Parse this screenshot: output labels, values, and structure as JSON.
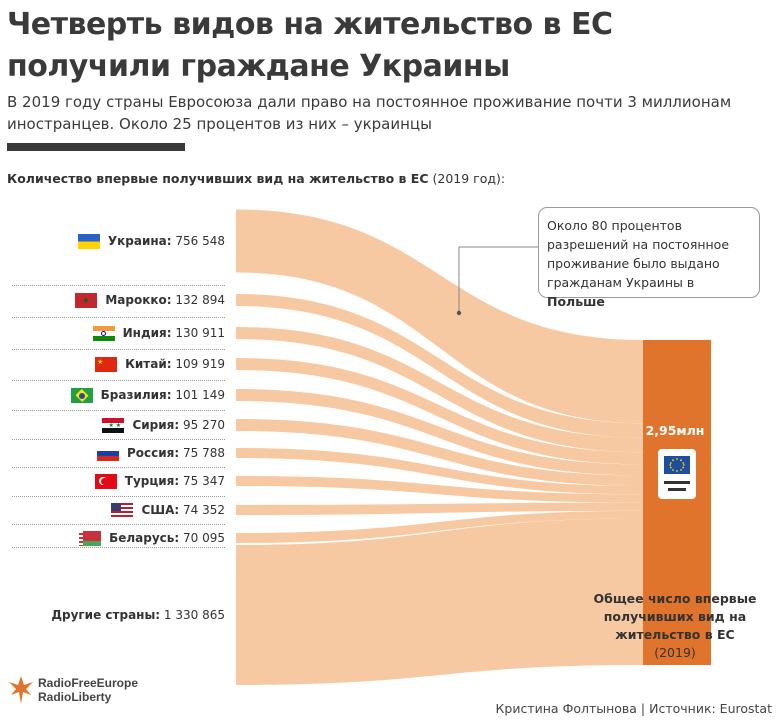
{
  "title": "Четверть видов на жительство в ЕС получили граждане Украины",
  "subtitle": "В 2019 году страны Евросоюза дали право на постоянное проживание почти 3 миллионам иностранцев. Около 25 процентов из них – украинцы",
  "heading": {
    "bold": "Количество впервые получивших вид на жительство в ЕС",
    "normal": " (2019 год):"
  },
  "callout": {
    "text": "Около 80 процентов разрешений на постоянное проживание было выдано гражданам Украины в ",
    "bold": "Польше"
  },
  "total": {
    "value": "2,95млн",
    "label_bold": "Общее число впервые получивших вид на жительство в ЕС",
    "label_normal": "(2019)"
  },
  "brand": {
    "line1": "RadioFreeEurope",
    "line2": "RadioLiberty"
  },
  "credits": "Кристина Фолтынова | Источник: Eurostat",
  "colors": {
    "flow": "#f7c9a2",
    "total_bar": "#e0742d",
    "text": "#333333"
  },
  "chart_data": {
    "type": "sankey",
    "target": "Общее число впервые получивших вид на жительство в ЕС",
    "target_value": "2,95млн",
    "sources": [
      {
        "name": "Украина",
        "value": 756548,
        "value_text": "756 548",
        "flag": "ukraine-flag-icon"
      },
      {
        "name": "Марокко",
        "value": 132894,
        "value_text": "132 894",
        "flag": "morocco-flag-icon"
      },
      {
        "name": "Индия",
        "value": 130911,
        "value_text": "130 911",
        "flag": "india-flag-icon"
      },
      {
        "name": "Китай",
        "value": 109919,
        "value_text": "109 919",
        "flag": "china-flag-icon"
      },
      {
        "name": "Бразилия",
        "value": 101149,
        "value_text": "101 149",
        "flag": "brazil-flag-icon"
      },
      {
        "name": "Сирия",
        "value": 95270,
        "value_text": "95 270",
        "flag": "syria-flag-icon"
      },
      {
        "name": "Россия",
        "value": 75788,
        "value_text": "75 788",
        "flag": "russia-flag-icon"
      },
      {
        "name": "Турция",
        "value": 75347,
        "value_text": "75 347",
        "flag": "turkey-flag-icon"
      },
      {
        "name": "США",
        "value": 74352,
        "value_text": "74 352",
        "flag": "usa-flag-icon"
      },
      {
        "name": "Беларусь",
        "value": 70095,
        "value_text": "70 095",
        "flag": "belarus-flag-icon"
      },
      {
        "name": "Другие страны",
        "value": 1330865,
        "value_text": "1 330 865",
        "flag": ""
      }
    ]
  }
}
